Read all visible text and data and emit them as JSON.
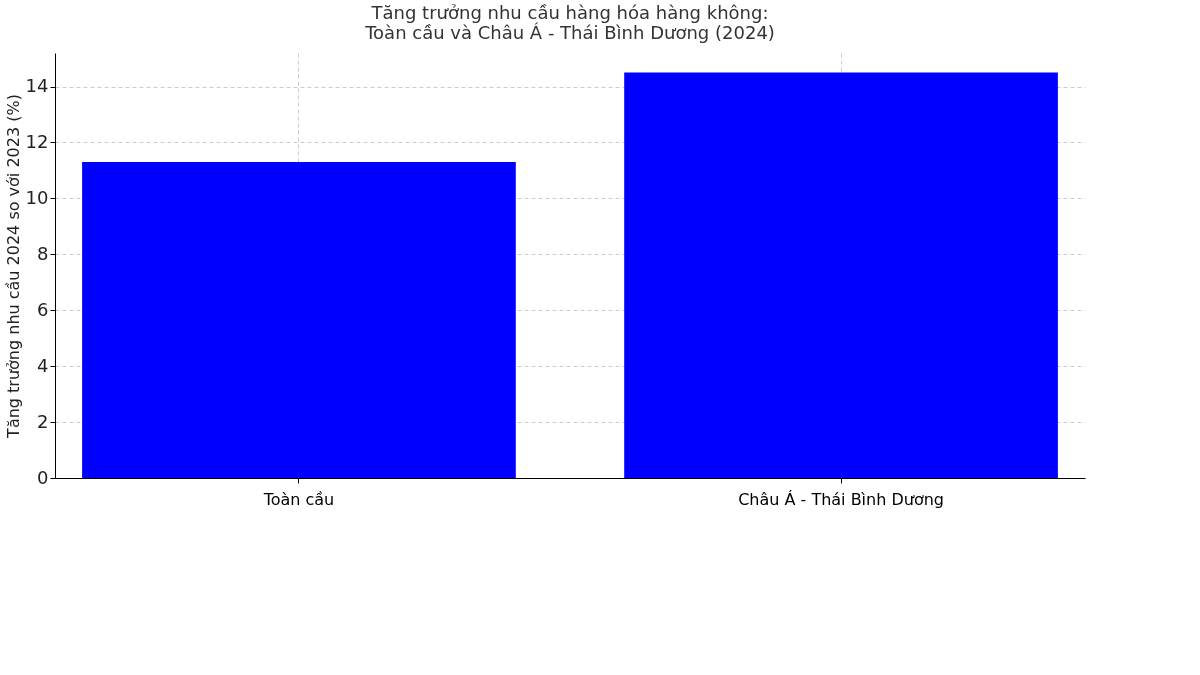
{
  "chart_data": {
    "type": "bar",
    "title": [
      "Tăng trưởng nhu cầu hàng hóa hàng không:",
      "Toàn cầu và Châu Á - Thái Bình Dương (2024)"
    ],
    "ylabel": "Tăng trưởng nhu cầu 2024 so với 2023 (%)",
    "categories": [
      "Toàn cầu",
      "Châu Á - Thái Bình Dương"
    ],
    "values": [
      11.3,
      14.5
    ],
    "color": "#0000ff",
    "ylim": [
      0,
      15.2
    ],
    "yticks": [
      0,
      2,
      4,
      6,
      8,
      10,
      12,
      14
    ],
    "grid": true
  }
}
